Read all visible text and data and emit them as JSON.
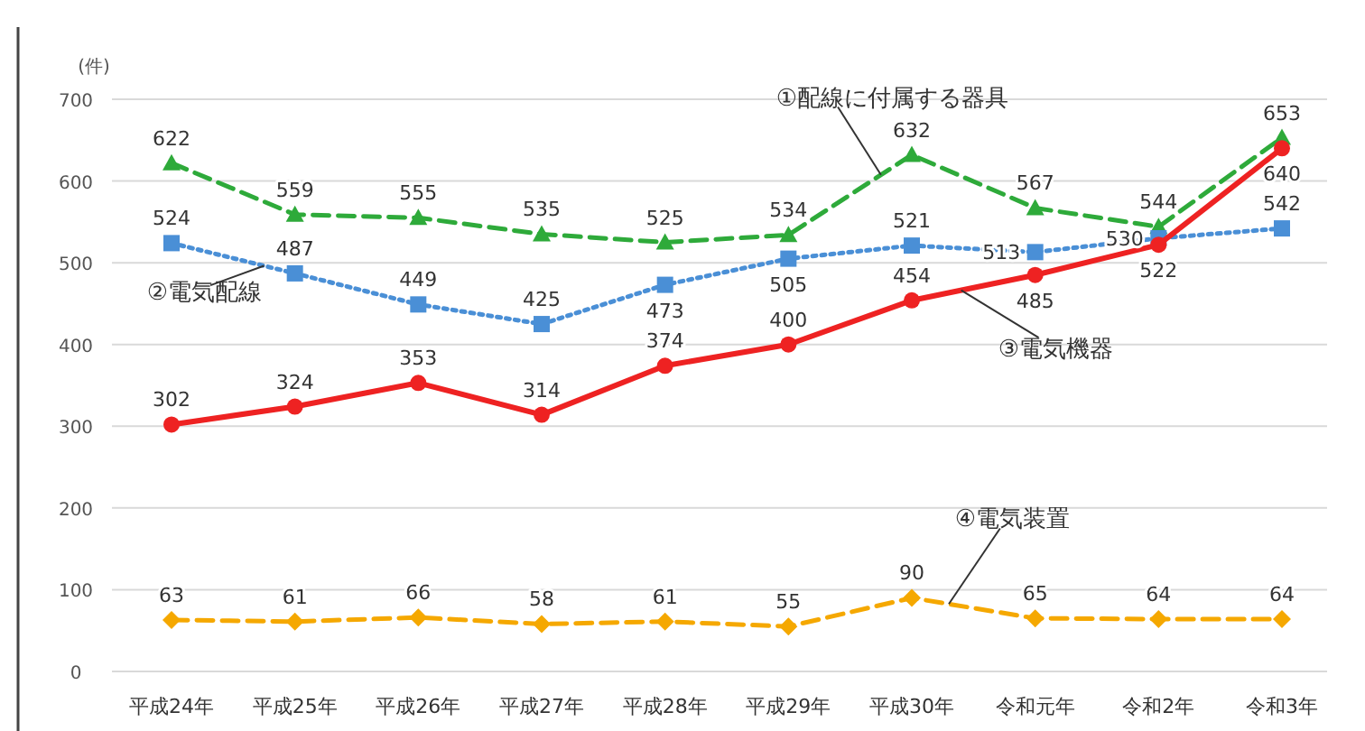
{
  "chart_data": {
    "type": "line",
    "ylabel": "(件)",
    "categories": [
      "平成24年",
      "平成25年",
      "平成26年",
      "平成27年",
      "平成28年",
      "平成29年",
      "平成30年",
      "令和元年",
      "令和2年",
      "令和3年"
    ],
    "series": [
      {
        "name": "①配線に付属する器具",
        "color": "#2eaa3a",
        "marker": "triangle",
        "line_style": "dashed",
        "values": [
          622,
          559,
          555,
          535,
          525,
          534,
          632,
          567,
          544,
          653
        ]
      },
      {
        "name": "②電気配線",
        "color": "#4a8fd6",
        "marker": "square",
        "line_style": "dotted",
        "values": [
          524,
          487,
          449,
          425,
          473,
          505,
          521,
          513,
          530,
          542
        ]
      },
      {
        "name": "③電気機器",
        "color": "#ee2222",
        "marker": "circle",
        "line_style": "solid",
        "values": [
          302,
          324,
          353,
          314,
          374,
          400,
          454,
          485,
          522,
          640
        ]
      },
      {
        "name": "④電気装置",
        "color": "#f5a800",
        "marker": "diamond",
        "line_style": "dashed",
        "values": [
          63,
          61,
          66,
          58,
          61,
          55,
          90,
          65,
          64,
          64
        ]
      }
    ],
    "ylim": [
      0,
      700
    ],
    "yticks": [
      0,
      100,
      200,
      300,
      400,
      500,
      600,
      700
    ],
    "grid": "y",
    "data_labels": true
  }
}
